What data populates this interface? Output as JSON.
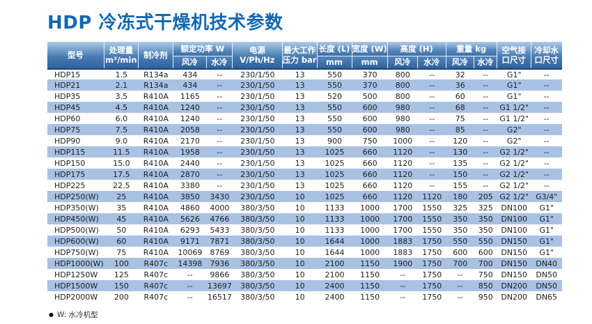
{
  "page": {
    "title": "HDP 冷冻式干燥机技术参数"
  },
  "colors": {
    "accent_blue": "#1268b0",
    "header_gradient_top": "#aecbe8",
    "header_gradient_bottom": "#2e639f",
    "header_bottom_border": "#1d4473",
    "row_stripe": "#a9c2e3"
  },
  "table": {
    "headers": {
      "model": "型号",
      "capacity": [
        "处理量",
        "m³/min"
      ],
      "refrigerant": "制冷剂",
      "rated_power": "额定功率 W",
      "air_cooled": "风冷",
      "water_cooled": "水冷",
      "power_supply": [
        "电源",
        "V/Ph/Hz"
      ],
      "max_pressure": [
        "最大工作",
        "压力 bar"
      ],
      "length": [
        "长度 (L)",
        "mm"
      ],
      "width": [
        "宽度 (W)",
        "mm"
      ],
      "height": "高度 (H)",
      "weight": "重量 kg",
      "air_port": [
        "空气接",
        "口尺寸"
      ],
      "water_port": [
        "冷却水",
        "口尺寸"
      ]
    },
    "rows": [
      [
        "HDP15",
        "1.5",
        "R134a",
        "434",
        "--",
        "230/1/50",
        "13",
        "550",
        "370",
        "800",
        "--",
        "32",
        "--",
        "G1\"",
        "--"
      ],
      [
        "HDP21",
        "2.1",
        "R134a",
        "434",
        "--",
        "230/1/50",
        "13",
        "550",
        "370",
        "800",
        "--",
        "36",
        "--",
        "G1\"",
        "--"
      ],
      [
        "HDP35",
        "3.5",
        "R410A",
        "1165",
        "--",
        "230/1/50",
        "13",
        "520",
        "500",
        "800",
        "--",
        "60",
        "--",
        "G1\"",
        "--"
      ],
      [
        "HDP45",
        "4.5",
        "R410A",
        "1240",
        "--",
        "230/1/50",
        "13",
        "550",
        "600",
        "980",
        "--",
        "68",
        "--",
        "G1 1/2\"",
        "--"
      ],
      [
        "HDP60",
        "6.0",
        "R410A",
        "1240",
        "--",
        "230/1/50",
        "13",
        "550",
        "600",
        "980",
        "--",
        "75",
        "--",
        "G1 1/2\"",
        "--"
      ],
      [
        "HDP75",
        "7.5",
        "R410A",
        "2058",
        "--",
        "230/1/50",
        "13",
        "550",
        "600",
        "980",
        "--",
        "85",
        "--",
        "G2\"",
        "--"
      ],
      [
        "HDP90",
        "9.0",
        "R410A",
        "2170",
        "--",
        "230/1/50",
        "13",
        "900",
        "750",
        "1000",
        "--",
        "120",
        "--",
        "G2\"",
        "--"
      ],
      [
        "HDP115",
        "11.5",
        "R410A",
        "1958",
        "--",
        "230/1/50",
        "13",
        "1025",
        "660",
        "1120",
        "--",
        "130",
        "--",
        "G2 1/2\"",
        "--"
      ],
      [
        "HDP150",
        "15.0",
        "R410A",
        "2440",
        "--",
        "230/1/50",
        "13",
        "1025",
        "660",
        "1120",
        "--",
        "135",
        "--",
        "G2 1/2\"",
        "--"
      ],
      [
        "HDP175",
        "17.5",
        "R410A",
        "2870",
        "--",
        "230/1/50",
        "13",
        "1025",
        "660",
        "1120",
        "--",
        "150",
        "--",
        "G2 1/2\"",
        "--"
      ],
      [
        "HDP225",
        "22.5",
        "R410A",
        "3380",
        "--",
        "230/1/50",
        "13",
        "1025",
        "660",
        "1120",
        "--",
        "155",
        "--",
        "G2 1/2\"",
        "--"
      ],
      [
        "HDP250(W)",
        "25",
        "R410A",
        "3850",
        "3430",
        "230/1/50",
        "10",
        "1025",
        "660",
        "1120",
        "1120",
        "180",
        "205",
        "G2 1/2\"",
        "G3/4\""
      ],
      [
        "HDP350(W)",
        "35",
        "R410A",
        "4860",
        "4000",
        "380/3/50",
        "10",
        "1133",
        "1000",
        "1700",
        "1550",
        "325",
        "325",
        "DN100",
        "G1\""
      ],
      [
        "HDP450(W)",
        "45",
        "R410A",
        "5626",
        "4766",
        "380/3/50",
        "10",
        "1133",
        "1000",
        "1700",
        "1550",
        "350",
        "350",
        "DN100",
        "G1\""
      ],
      [
        "HDP500(W)",
        "50",
        "R410A",
        "6293",
        "5433",
        "380/3/50",
        "10",
        "1133",
        "1000",
        "1700",
        "1550",
        "350",
        "350",
        "DN100",
        "G1\""
      ],
      [
        "HDP600(W)",
        "60",
        "R410A",
        "9171",
        "7871",
        "380/3/50",
        "10",
        "1644",
        "1000",
        "1883",
        "1750",
        "550",
        "550",
        "DN150",
        "G1\""
      ],
      [
        "HDP750(W)",
        "75",
        "R410A",
        "10069",
        "8769",
        "380/3/50",
        "10",
        "1644",
        "1000",
        "1883",
        "1750",
        "600",
        "600",
        "DN150",
        "G1\""
      ],
      [
        "HDP1000(W)",
        "100",
        "R407c",
        "14398",
        "7936",
        "380/3/50",
        "10",
        "2100",
        "1150",
        "1900",
        "1750",
        "700",
        "700",
        "DN150",
        "DN40"
      ],
      [
        "HDP1250W",
        "125",
        "R407c",
        "--",
        "9866",
        "380/3/50",
        "10",
        "2100",
        "1150",
        "--",
        "1750",
        "--",
        "750",
        "DN150",
        "DN50"
      ],
      [
        "HDP1500W",
        "150",
        "R407c",
        "--",
        "13697",
        "380/3/50",
        "10",
        "2400",
        "1150",
        "--",
        "1750",
        "--",
        "850",
        "DN200",
        "DN50"
      ],
      [
        "HDP2000W",
        "200",
        "R407c",
        "--",
        "16517",
        "380/3/50",
        "10",
        "2400",
        "1150",
        "--",
        "1750",
        "--",
        "950",
        "DN200",
        "DN65"
      ]
    ],
    "footnote": {
      "bullet": "●",
      "text": "W: 水冷机型"
    }
  }
}
